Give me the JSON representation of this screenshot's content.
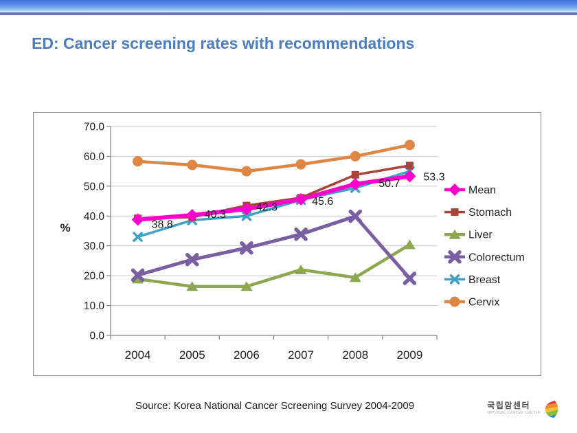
{
  "slide": {
    "title": "ED: Cancer screening rates with recommendations",
    "source": "Source: Korea National Cancer Screening Survey 2004-2009",
    "logo": {
      "name": "국립암센터",
      "caption": "NATIONAL CANCER CENTER",
      "icon": "ncc-leaf-icon"
    }
  },
  "chart_data": {
    "type": "line",
    "title": "",
    "xlabel": "",
    "ylabel": "%",
    "ylim": [
      0,
      70
    ],
    "ytick_step": 10,
    "ytick_format": "one-decimal",
    "grid": true,
    "legend_position": "right",
    "categories": [
      "2004",
      "2005",
      "2006",
      "2007",
      "2008",
      "2009"
    ],
    "series": [
      {
        "name": "Mean",
        "color": "#FF00CC",
        "marker": "diamond",
        "values": [
          38.8,
          40.3,
          42.3,
          45.6,
          50.7,
          53.3
        ],
        "labels": [
          "38.8",
          "40.3",
          "42.3",
          "45.6",
          "50.7",
          "53.3"
        ]
      },
      {
        "name": "Stomach",
        "color": "#A8423B",
        "marker": "square",
        "values": [
          39.2,
          39.6,
          43.5,
          46.1,
          53.8,
          56.9
        ]
      },
      {
        "name": "Liver",
        "color": "#8DA850",
        "marker": "triangle",
        "values": [
          18.9,
          16.4,
          16.4,
          22.0,
          19.4,
          30.4
        ]
      },
      {
        "name": "Colorectum",
        "color": "#7A5EA2",
        "marker": "x-bold",
        "values": [
          20.2,
          25.4,
          29.3,
          33.9,
          39.9,
          19.1
        ]
      },
      {
        "name": "Breast",
        "color": "#3FA2C4",
        "marker": "x",
        "values": [
          33.0,
          38.6,
          40.0,
          45.4,
          49.4,
          55.0
        ]
      },
      {
        "name": "Cervix",
        "color": "#DF8643",
        "marker": "circle",
        "values": [
          58.3,
          57.1,
          55.0,
          57.3,
          60.0,
          63.8
        ]
      }
    ]
  }
}
